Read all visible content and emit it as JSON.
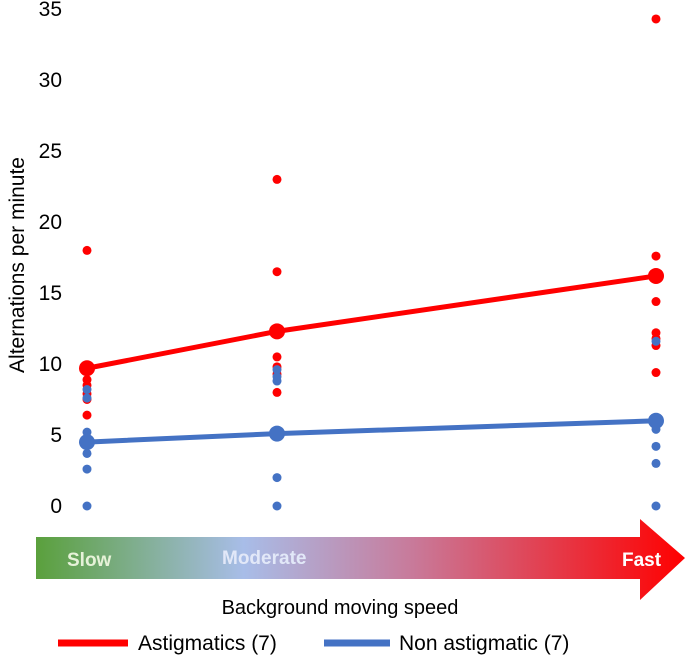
{
  "chart_data": {
    "type": "line",
    "title": "",
    "xlabel": "Background moving speed",
    "ylabel": "Alternations per minute",
    "ylim": [
      0,
      35
    ],
    "yticks": [
      "0",
      "5",
      "10",
      "15",
      "20",
      "25",
      "30",
      "35"
    ],
    "ytick_values": [
      0,
      5,
      10,
      15,
      20,
      25,
      30,
      35
    ],
    "categories": [
      "Slow",
      "Moderate",
      "Fast"
    ],
    "grid": false,
    "legend_position": "bottom",
    "series": [
      {
        "name": "Astigmatics (7)",
        "color": "#ff0000",
        "values": [
          9.7,
          12.3,
          16.2
        ],
        "individual_points": [
          [
            18.0,
            8.9,
            8.5,
            7.9,
            7.5,
            6.4,
            4.8
          ],
          [
            23.0,
            16.5,
            10.5,
            9.8,
            9.3,
            8.0
          ],
          [
            34.3,
            17.6,
            14.4,
            12.2,
            11.8,
            11.3,
            9.4
          ]
        ]
      },
      {
        "name": "Non astigmatic (7)",
        "color": "#4472c4",
        "values": [
          4.5,
          5.1,
          6.0
        ],
        "individual_points": [
          [
            8.2,
            7.6,
            5.2,
            3.7,
            2.6,
            0.0
          ],
          [
            9.6,
            9.1,
            8.8,
            5.2,
            2.0,
            0.0
          ],
          [
            11.6,
            5.4,
            4.2,
            3.0,
            0.0
          ]
        ]
      }
    ]
  },
  "legend": {
    "items": [
      {
        "label": "Astigmatics (7)",
        "color": "#ff0000"
      },
      {
        "label": "Non astigmatic (7)",
        "color": "#4472c4"
      }
    ]
  }
}
